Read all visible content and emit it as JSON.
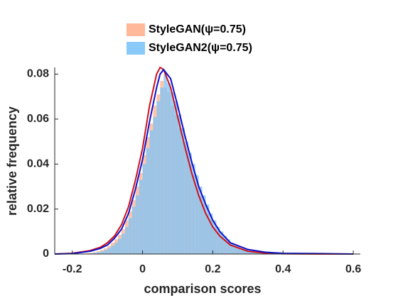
{
  "chart_data": {
    "type": "histogram",
    "xlabel": "comparison scores",
    "ylabel": "relative frequency",
    "xlim": [
      -0.25,
      0.62
    ],
    "ylim": [
      0,
      0.083
    ],
    "xticks": [
      -0.2,
      0,
      0.2,
      0.4,
      0.6
    ],
    "yticks": [
      0,
      0.02,
      0.04,
      0.06,
      0.08
    ],
    "legend": "top",
    "bins": [
      -0.2,
      -0.19,
      -0.18,
      -0.17,
      -0.16,
      -0.15,
      -0.14,
      -0.13,
      -0.12,
      -0.11,
      -0.1,
      -0.09,
      -0.08,
      -0.07,
      -0.06,
      -0.05,
      -0.04,
      -0.03,
      -0.02,
      -0.01,
      0,
      0.01,
      0.02,
      0.03,
      0.04,
      0.05,
      0.06,
      0.07,
      0.08,
      0.09,
      0.1,
      0.11,
      0.12,
      0.13,
      0.14,
      0.15,
      0.16,
      0.17,
      0.18,
      0.19,
      0.2,
      0.21,
      0.22,
      0.23,
      0.24,
      0.25,
      0.26,
      0.27,
      0.28,
      0.29,
      0.3,
      0.31,
      0.32,
      0.33,
      0.34,
      0.35,
      0.36,
      0.37,
      0.38,
      0.39,
      0.4
    ],
    "series": [
      {
        "name": "StyleGAN(ψ=0.75)",
        "color": "#ffb08e",
        "values": [
          0,
          0,
          0,
          0.0002,
          0.0003,
          0.0005,
          0.0008,
          0.0012,
          0.0018,
          0.0025,
          0.0035,
          0.005,
          0.0065,
          0.0085,
          0.011,
          0.015,
          0.019,
          0.024,
          0.03,
          0.036,
          0.044,
          0.052,
          0.058,
          0.066,
          0.071,
          0.077,
          0.074,
          0.072,
          0.066,
          0.062,
          0.056,
          0.05,
          0.046,
          0.04,
          0.035,
          0.03,
          0.026,
          0.022,
          0.018,
          0.015,
          0.012,
          0.01,
          0.008,
          0.0065,
          0.005,
          0.004,
          0.003,
          0.0025,
          0.002,
          0.0015,
          0.0012,
          0.001,
          0.0008,
          0.0006,
          0.0005,
          0.0004,
          0.0003,
          0.0002,
          0.0002,
          0.0001
        ]
      },
      {
        "name": "StyleGAN2(ψ=0.75)",
        "color": "#7cc4f8",
        "values": [
          0,
          0,
          0,
          0,
          0.0002,
          0.0003,
          0.0005,
          0.0008,
          0.0012,
          0.0018,
          0.0026,
          0.0037,
          0.005,
          0.0068,
          0.009,
          0.012,
          0.016,
          0.021,
          0.026,
          0.033,
          0.04,
          0.047,
          0.055,
          0.061,
          0.068,
          0.074,
          0.08,
          0.076,
          0.072,
          0.068,
          0.062,
          0.056,
          0.05,
          0.045,
          0.04,
          0.035,
          0.03,
          0.026,
          0.022,
          0.018,
          0.015,
          0.012,
          0.01,
          0.008,
          0.0065,
          0.005,
          0.004,
          0.0033,
          0.0026,
          0.002,
          0.0016,
          0.0013,
          0.001,
          0.0008,
          0.0006,
          0.0005,
          0.0004,
          0.0003,
          0.0002,
          0.0002
        ]
      }
    ],
    "curve_x": [
      -0.25,
      -0.2,
      -0.15,
      -0.12,
      -0.1,
      -0.08,
      -0.06,
      -0.04,
      -0.02,
      0,
      0.02,
      0.04,
      0.05,
      0.06,
      0.08,
      0.1,
      0.12,
      0.14,
      0.16,
      0.18,
      0.2,
      0.22,
      0.25,
      0.3,
      0.35,
      0.4,
      0.5,
      0.6
    ],
    "lines": [
      {
        "color": "#d0101a",
        "values": [
          0,
          0.0003,
          0.0015,
          0.003,
          0.005,
          0.008,
          0.013,
          0.021,
          0.033,
          0.047,
          0.066,
          0.08,
          0.083,
          0.082,
          0.074,
          0.061,
          0.048,
          0.036,
          0.026,
          0.018,
          0.012,
          0.008,
          0.004,
          0.0012,
          0.0004,
          0.0001,
          0,
          0
        ]
      },
      {
        "color": "#1010c8",
        "values": [
          0,
          0.0002,
          0.0012,
          0.0025,
          0.004,
          0.007,
          0.011,
          0.018,
          0.029,
          0.042,
          0.059,
          0.074,
          0.08,
          0.082,
          0.078,
          0.066,
          0.053,
          0.041,
          0.03,
          0.022,
          0.015,
          0.01,
          0.005,
          0.002,
          0.0008,
          0.0003,
          0.0002,
          0
        ]
      }
    ]
  }
}
